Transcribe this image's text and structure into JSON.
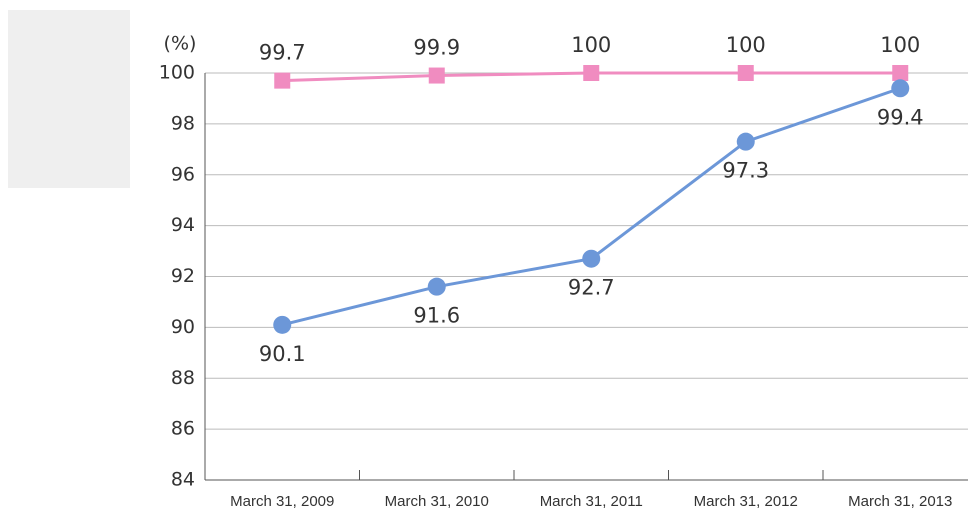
{
  "chart_data": {
    "type": "line",
    "y_label": "(%)",
    "categories": [
      "March 31, 2009",
      "March 31, 2010",
      "March 31, 2011",
      "March 31, 2012",
      "March 31, 2013"
    ],
    "series": [
      {
        "color": "#f08cc0",
        "marker": "square",
        "values": [
          99.7,
          99.9,
          100,
          100,
          100
        ]
      },
      {
        "color": "#6c97d8",
        "marker": "circle",
        "values": [
          90.1,
          91.6,
          92.7,
          97.3,
          99.4
        ]
      }
    ],
    "ylim": [
      84,
      100
    ],
    "yticks": [
      84,
      86,
      88,
      90,
      92,
      94,
      96,
      98,
      100
    ],
    "grid": true
  }
}
